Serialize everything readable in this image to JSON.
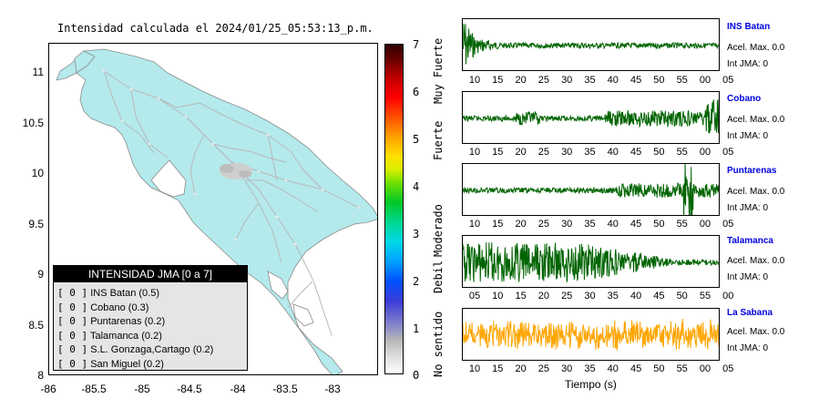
{
  "map": {
    "title": "Intensidad calculada el 2024/01/25_05:53:13_p.m.",
    "y_ticks": [
      "11",
      "10.5",
      "10",
      "9.5",
      "9",
      "8.5",
      "8"
    ],
    "x_ticks": [
      "-86",
      "-85.5",
      "-85",
      "-84.5",
      "-84",
      "-83.5",
      "-83"
    ],
    "land_color": "#b4eaec",
    "road_color": "#b0b0b0"
  },
  "legend": {
    "title": "INTENSIDAD JMA [0 a 7]",
    "rows": [
      {
        "bracket": "[ 0 ]",
        "label": "INS Batan (0.5)"
      },
      {
        "bracket": "[ 0 ]",
        "label": "Cobano (0.3)"
      },
      {
        "bracket": "[ 0 ]",
        "label": "Puntarenas (0.2)"
      },
      {
        "bracket": "[ 0 ]",
        "label": "Talamanca (0.2)"
      },
      {
        "bracket": "[ 0 ]",
        "label": "S.L. Gonzaga,Cartago (0.2)"
      },
      {
        "bracket": "[ 0 ]",
        "label": "San Miguel (0.2)"
      }
    ]
  },
  "colorbar": {
    "numbers": [
      "7",
      "6",
      "5",
      "4",
      "3",
      "2",
      "1",
      "0"
    ],
    "categories": [
      "Muy Fuerte",
      "Fuerte",
      "Moderado",
      "Debil",
      "No sentido"
    ]
  },
  "stations": [
    {
      "name": "INS Batan",
      "acel": "Acel. Max. 0.0",
      "int": "Int JMA: 0",
      "color": "#006400",
      "ticks": [
        "10",
        "15",
        "20",
        "25",
        "30",
        "35",
        "40",
        "45",
        "50",
        "55",
        "00",
        "05"
      ],
      "shape": "early"
    },
    {
      "name": "Cobano",
      "acel": "Acel. Max. 0.0",
      "int": "Int JMA: 0",
      "color": "#006400",
      "ticks": [
        "10",
        "15",
        "20",
        "25",
        "30",
        "35",
        "40",
        "45",
        "50",
        "55",
        "00",
        "05"
      ],
      "shape": "late"
    },
    {
      "name": "Puntarenas",
      "acel": "Acel. Max. 0.0",
      "int": "Int JMA: 0",
      "color": "#006400",
      "ticks": [
        "10",
        "15",
        "20",
        "25",
        "30",
        "35",
        "40",
        "45",
        "50",
        "55",
        "00",
        "05"
      ],
      "shape": "spike"
    },
    {
      "name": "Talamanca",
      "acel": "Acel. Max. 0.0",
      "int": "Int JMA: 0",
      "color": "#006400",
      "ticks": [
        "05",
        "10",
        "15",
        "20",
        "25",
        "30",
        "35",
        "40",
        "45",
        "50",
        "55",
        "00"
      ],
      "shape": "burst"
    },
    {
      "name": "La Sabana",
      "acel": "Acel. Max. 0.0",
      "int": "Int JMA: 0",
      "color": "#ffa500",
      "ticks": [
        "10",
        "15",
        "20",
        "25",
        "30",
        "35",
        "40",
        "45",
        "50",
        "55",
        "00",
        "05"
      ],
      "shape": "noise"
    }
  ],
  "time_axis_label": "Tiempo (s)"
}
